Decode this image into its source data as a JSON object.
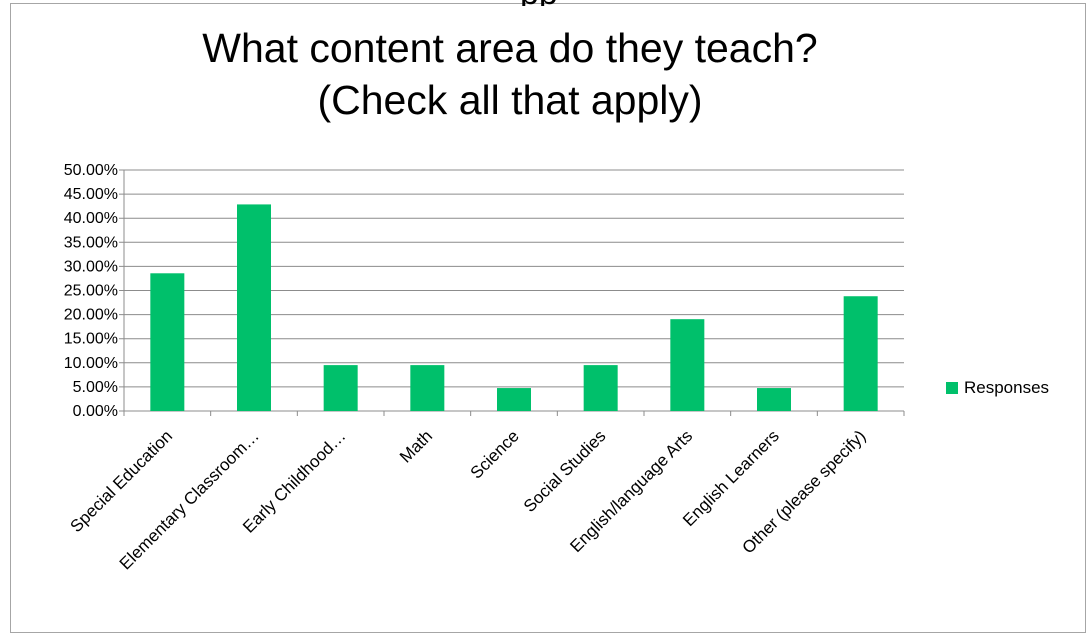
{
  "header_fragment": "pp",
  "chart_data": {
    "type": "bar",
    "title_lines": [
      "What content area do they teach?",
      "(Check all that apply)"
    ],
    "categories": [
      "Special Education",
      "Elementary Classroom…",
      "Early Childhood…",
      "Math",
      "Science",
      "Social Studies",
      "English/language Arts",
      "English Learners",
      "Other (please specify)"
    ],
    "series": [
      {
        "name": "Responses",
        "values": [
          28.57,
          42.86,
          9.52,
          9.52,
          4.76,
          9.52,
          19.05,
          4.76,
          23.81
        ]
      }
    ],
    "yticks": [
      "0.00%",
      "5.00%",
      "10.00%",
      "15.00%",
      "20.00%",
      "25.00%",
      "30.00%",
      "35.00%",
      "40.00%",
      "45.00%",
      "50.00%"
    ],
    "ylim": [
      0,
      50
    ],
    "grid": true,
    "legend_position": "right",
    "bar_color": "#00c06b"
  }
}
